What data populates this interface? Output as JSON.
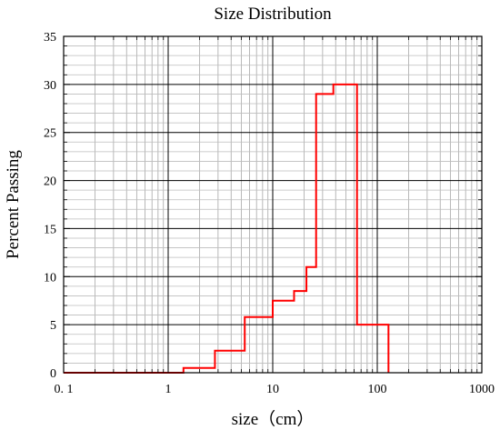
{
  "chart_data": {
    "type": "line",
    "title": "Size Distribution",
    "xlabel": "size（cm）",
    "ylabel": "Percent Passing",
    "x_scale": "log",
    "xlim": [
      0.1,
      1000
    ],
    "ylim": [
      0,
      35
    ],
    "x_ticks": [
      {
        "value": 0.1,
        "label": "0. 1"
      },
      {
        "value": 1,
        "label": "1"
      },
      {
        "value": 10,
        "label": "10"
      },
      {
        "value": 100,
        "label": "100"
      },
      {
        "value": 1000,
        "label": "1000"
      }
    ],
    "y_ticks": [
      {
        "value": 0,
        "label": "0"
      },
      {
        "value": 5,
        "label": "5"
      },
      {
        "value": 10,
        "label": "10"
      },
      {
        "value": 15,
        "label": "15"
      },
      {
        "value": 20,
        "label": "20"
      },
      {
        "value": 25,
        "label": "25"
      },
      {
        "value": 30,
        "label": "30"
      },
      {
        "value": 35,
        "label": "35"
      }
    ],
    "grid": true,
    "series": [
      {
        "color": "#ff0000",
        "step_points": [
          [
            0.1,
            0
          ],
          [
            1.4,
            0
          ],
          [
            1.4,
            0.5
          ],
          [
            2.8,
            0.5
          ],
          [
            2.8,
            2.3
          ],
          [
            5.4,
            2.3
          ],
          [
            5.4,
            5.8
          ],
          [
            10,
            5.8
          ],
          [
            10,
            7.5
          ],
          [
            16,
            7.5
          ],
          [
            16,
            8.5
          ],
          [
            21,
            8.5
          ],
          [
            21,
            11
          ],
          [
            26,
            11
          ],
          [
            26,
            29
          ],
          [
            38,
            29
          ],
          [
            38,
            30
          ],
          [
            64,
            30
          ],
          [
            64,
            5
          ],
          [
            128,
            5
          ],
          [
            128,
            0
          ]
        ]
      }
    ]
  }
}
